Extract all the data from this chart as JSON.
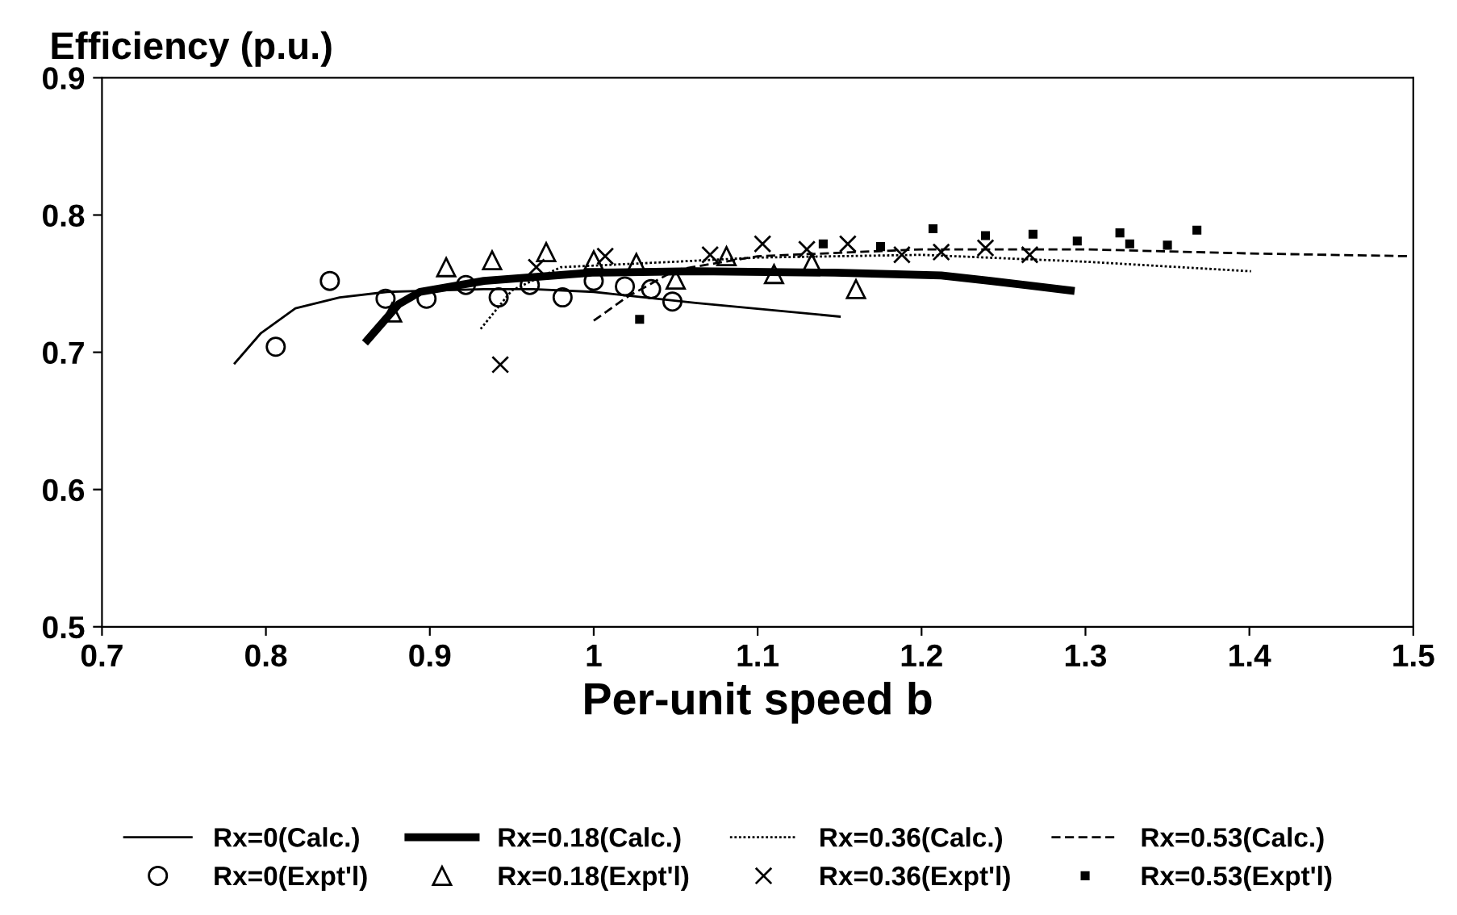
{
  "chart_data": {
    "type": "line",
    "title": "Efficiency (p.u.)",
    "xlabel": "Per-unit speed b",
    "xlim": [
      0.7,
      1.5
    ],
    "xticks": [
      0.7,
      0.8,
      0.9,
      1,
      1.1,
      1.2,
      1.3,
      1.4,
      1.5
    ],
    "ylim": [
      0.5,
      0.9
    ],
    "yticks": [
      0.5,
      0.6,
      0.7,
      0.8,
      0.9
    ],
    "grid": false,
    "legend": "bottom",
    "series": [
      {
        "name": "Rx=0(Calc.)",
        "line_style": "solid",
        "color": "#000000",
        "x": [
          0.781,
          0.797,
          0.818,
          0.845,
          0.874,
          0.933,
          0.963,
          1.0,
          1.062,
          1.15
        ],
        "values": [
          0.692,
          0.714,
          0.732,
          0.74,
          0.744,
          0.746,
          0.746,
          0.744,
          0.736,
          0.726
        ]
      },
      {
        "name": "Rx=0.18(Calc.)",
        "line_style": "solid",
        "color": "#000000",
        "x": [
          0.862,
          0.881,
          0.894,
          0.933,
          0.999,
          1.062,
          1.147,
          1.212,
          1.242,
          1.291
        ],
        "values": [
          0.709,
          0.735,
          0.744,
          0.752,
          0.758,
          0.759,
          0.758,
          0.756,
          0.752,
          0.745
        ]
      },
      {
        "name": "Rx=0.36(Calc.)",
        "line_style": "dotted",
        "color": "#000000",
        "x": [
          0.931,
          0.95,
          0.98,
          1.05,
          1.1,
          1.2,
          1.3,
          1.401
        ],
        "values": [
          0.717,
          0.745,
          0.762,
          0.766,
          0.769,
          0.771,
          0.766,
          0.759
        ]
      },
      {
        "name": "Rx=0.53(Calc.)",
        "line_style": "dashed",
        "color": "#000000",
        "x": [
          1.0,
          1.02,
          1.05,
          1.1,
          1.2,
          1.3,
          1.4,
          1.498
        ],
        "values": [
          0.723,
          0.74,
          0.76,
          0.77,
          0.775,
          0.775,
          0.772,
          0.77
        ]
      },
      {
        "name": "Rx=0(Expt'l)",
        "type": "scatter",
        "marker": "circle",
        "color": "#000000",
        "x": [
          0.806,
          0.839,
          0.873,
          0.898,
          0.922,
          0.942,
          0.961,
          0.981,
          1.0,
          1.019,
          1.035,
          1.048
        ],
        "values": [
          0.704,
          0.752,
          0.739,
          0.739,
          0.749,
          0.74,
          0.749,
          0.74,
          0.752,
          0.748,
          0.746,
          0.737
        ]
      },
      {
        "name": "Rx=0.18(Expt'l)",
        "type": "scatter",
        "marker": "triangle",
        "color": "#000000",
        "x": [
          0.877,
          0.91,
          0.938,
          0.971,
          1.0,
          1.026,
          1.05,
          1.081,
          1.11,
          1.133,
          1.16
        ],
        "values": [
          0.729,
          0.762,
          0.767,
          0.773,
          0.767,
          0.765,
          0.753,
          0.77,
          0.757,
          0.765,
          0.746
        ]
      },
      {
        "name": "Rx=0.36(Expt'l)",
        "type": "scatter",
        "marker": "cross",
        "color": "#000000",
        "x": [
          0.943,
          0.965,
          1.007,
          1.071,
          1.103,
          1.13,
          1.155,
          1.188,
          1.212,
          1.239,
          1.266
        ],
        "values": [
          0.691,
          0.762,
          0.77,
          0.771,
          0.779,
          0.775,
          0.779,
          0.771,
          0.773,
          0.776,
          0.771
        ]
      },
      {
        "name": "Rx=0.53(Expt'l)",
        "type": "scatter",
        "marker": "square",
        "color": "#000000",
        "x": [
          1.028,
          1.14,
          1.175,
          1.207,
          1.239,
          1.268,
          1.295,
          1.321,
          1.327,
          1.35,
          1.368
        ],
        "values": [
          0.724,
          0.779,
          0.777,
          0.79,
          0.785,
          0.786,
          0.781,
          0.787,
          0.779,
          0.778,
          0.789
        ]
      }
    ]
  }
}
